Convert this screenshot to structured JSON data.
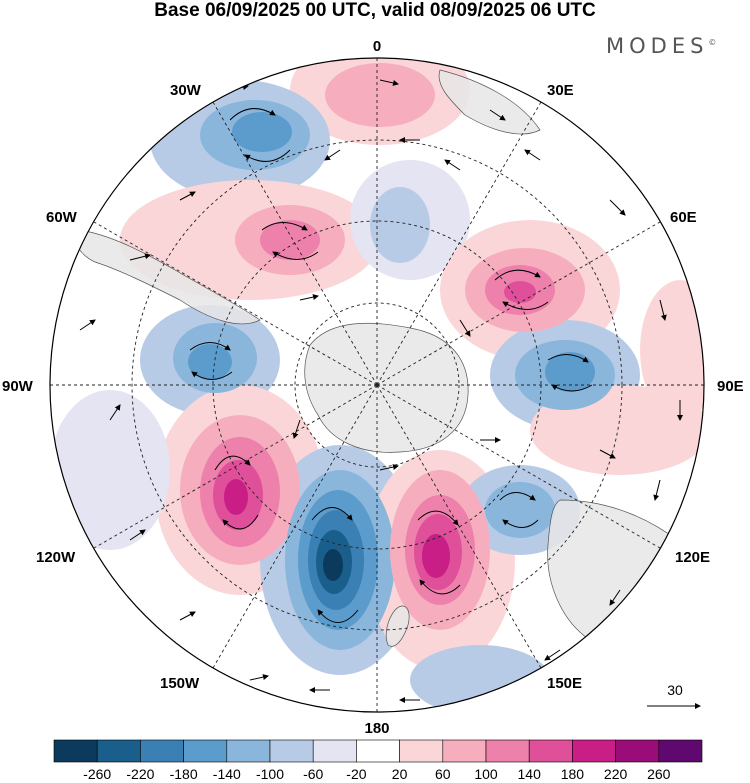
{
  "title": "Base 06/09/2025 00 UTC, valid 08/09/2025 06 UTC",
  "brand": "MODES",
  "brand_mark": "©",
  "longitude_labels": {
    "top": "0",
    "bottom": "180",
    "left": "90W",
    "right": "90E",
    "upper_left_30": "30W",
    "upper_right_30": "30E",
    "upper_left_60": "60W",
    "upper_right_60": "60E",
    "lower_left_120": "120W",
    "lower_right_120": "120E",
    "lower_left_150": "150W",
    "lower_right_150": "150E"
  },
  "reference_vector_label": "30",
  "colorbar": {
    "ticks": [
      "-260",
      "-220",
      "-180",
      "-140",
      "-100",
      "-60",
      "-20",
      "20",
      "60",
      "100",
      "140",
      "180",
      "220",
      "260"
    ],
    "colors": [
      "#0c3a5c",
      "#1a5f8c",
      "#3a80b4",
      "#5b9ccc",
      "#8ab6dc",
      "#b8cbe6",
      "#e4e4f2",
      "#ffffff",
      "#fbd6d8",
      "#f6aebf",
      "#ee80ac",
      "#e04f9a",
      "#c81e86",
      "#9a0c78",
      "#5e0870"
    ]
  },
  "colors": {
    "land": "#e6e6e6",
    "coast": "#555555",
    "grid": "#222222",
    "neg_strong": "#1a5f8c",
    "neg_mid": "#5b9ccc",
    "neg_weak": "#b8cbe6",
    "pos_strong": "#c81e86",
    "pos_mid": "#ee80ac",
    "pos_weak": "#fbd6d8"
  }
}
